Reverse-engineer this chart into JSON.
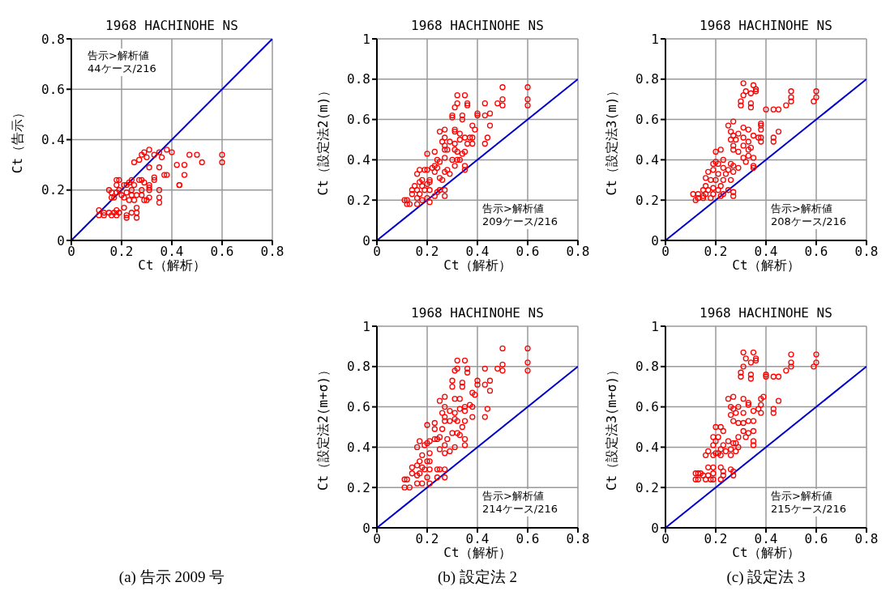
{
  "chart_data": [
    {
      "type": "scatter",
      "title": "1968 HACHINOHE NS",
      "xlabel": "Ct（解析）",
      "ylabel": "Ct（告示）",
      "xlim": [
        0,
        0.8
      ],
      "ylim": [
        0,
        0.8
      ],
      "xticks": [
        0,
        0.2,
        0.4,
        0.6,
        0.8
      ],
      "yticks": [
        0,
        0.2,
        0.4,
        0.6,
        0.8
      ],
      "grid": true,
      "annotations": [
        "告示>解析値",
        "44ケース/216",
        "(a) 告示 2009 号"
      ],
      "series": [
        {
          "type": "scatter",
          "marker": "circle",
          "color": "#ff0000",
          "x": [
            0.45,
            0.43,
            0.43,
            0.38,
            0.37,
            0.35,
            0.31,
            0.35,
            0.35,
            0.35,
            0.31,
            0.29,
            0.26,
            0.26,
            0.26,
            0.24,
            0.22,
            0.22,
            0.21,
            0.18,
            0.17,
            0.15,
            0.13,
            0.11,
            0.11,
            0.13,
            0.16,
            0.18,
            0.19,
            0.16,
            0.18,
            0.2,
            0.22,
            0.24,
            0.26,
            0.28,
            0.3,
            0.25,
            0.23,
            0.17,
            0.19,
            0.18,
            0.18,
            0.19,
            0.21,
            0.22,
            0.23,
            0.24,
            0.25,
            0.27,
            0.28,
            0.29,
            0.31,
            0.31,
            0.33,
            0.33,
            0.31,
            0.28,
            0.24,
            0.15,
            0.16,
            0.21,
            0.5,
            0.6,
            0.6,
            0.52,
            0.47,
            0.45,
            0.4,
            0.38,
            0.35,
            0.33,
            0.3,
            0.28,
            0.27,
            0.25,
            0.31,
            0.36,
            0.42,
            0.29
          ],
          "values": [
            0.26,
            0.22,
            0.22,
            0.26,
            0.26,
            0.29,
            0.29,
            0.2,
            0.17,
            0.15,
            0.17,
            0.16,
            0.13,
            0.11,
            0.09,
            0.11,
            0.1,
            0.09,
            0.13,
            0.12,
            0.11,
            0.11,
            0.11,
            0.12,
            0.1,
            0.1,
            0.1,
            0.1,
            0.11,
            0.19,
            0.19,
            0.18,
            0.19,
            0.18,
            0.18,
            0.18,
            0.16,
            0.16,
            0.16,
            0.17,
            0.2,
            0.22,
            0.24,
            0.24,
            0.22,
            0.22,
            0.23,
            0.24,
            0.22,
            0.24,
            0.24,
            0.23,
            0.22,
            0.21,
            0.24,
            0.25,
            0.2,
            0.2,
            0.2,
            0.2,
            0.17,
            0.17,
            0.34,
            0.34,
            0.31,
            0.31,
            0.34,
            0.3,
            0.35,
            0.36,
            0.35,
            0.34,
            0.33,
            0.34,
            0.32,
            0.31,
            0.36,
            0.33,
            0.3,
            0.35
          ]
        },
        {
          "type": "line",
          "marker": "none",
          "color": "#0000cc",
          "x": [
            0,
            0.8
          ],
          "values": [
            0,
            0.8
          ]
        }
      ]
    },
    {
      "type": "scatter",
      "title": "1968 HACHINOHE NS",
      "xlabel": "Ct（解析）",
      "ylabel": "Ct（設定法2(m)）",
      "xlim": [
        0,
        0.8
      ],
      "ylim": [
        0,
        1
      ],
      "xticks": [
        0,
        0.2,
        0.4,
        0.6,
        0.8
      ],
      "yticks": [
        0,
        0.2,
        0.4,
        0.6,
        0.8,
        1
      ],
      "grid": true,
      "annotations": [
        "告示>解析値",
        "209ケース/216"
      ],
      "series": [
        {
          "type": "scatter",
          "marker": "circle",
          "color": "#ff0000",
          "x": [
            0.5,
            0.6,
            0.6,
            0.6,
            0.5,
            0.5,
            0.48,
            0.43,
            0.32,
            0.35,
            0.32,
            0.31,
            0.36,
            0.36,
            0.3,
            0.3,
            0.34,
            0.34,
            0.4,
            0.4,
            0.43,
            0.45,
            0.45,
            0.38,
            0.39,
            0.27,
            0.25,
            0.31,
            0.31,
            0.33,
            0.35,
            0.37,
            0.38,
            0.44,
            0.43,
            0.38,
            0.36,
            0.33,
            0.27,
            0.26,
            0.27,
            0.29,
            0.31,
            0.31,
            0.28,
            0.27,
            0.23,
            0.2,
            0.32,
            0.34,
            0.35,
            0.24,
            0.27,
            0.3,
            0.32,
            0.33,
            0.35,
            0.35,
            0.31,
            0.25,
            0.23,
            0.22,
            0.2,
            0.17,
            0.19,
            0.16,
            0.24,
            0.28,
            0.27,
            0.29,
            0.23,
            0.25,
            0.26,
            0.17,
            0.18,
            0.21,
            0.21,
            0.2,
            0.18,
            0.15,
            0.14,
            0.16,
            0.19,
            0.21,
            0.24,
            0.25,
            0.27,
            0.27,
            0.23,
            0.2,
            0.17,
            0.14,
            0.16,
            0.11,
            0.12,
            0.12,
            0.13,
            0.16,
            0.18,
            0.21
          ],
          "values": [
            0.76,
            0.76,
            0.7,
            0.67,
            0.7,
            0.67,
            0.68,
            0.68,
            0.72,
            0.72,
            0.68,
            0.66,
            0.68,
            0.67,
            0.62,
            0.61,
            0.62,
            0.6,
            0.63,
            0.62,
            0.62,
            0.63,
            0.57,
            0.57,
            0.55,
            0.55,
            0.54,
            0.55,
            0.54,
            0.53,
            0.51,
            0.51,
            0.51,
            0.51,
            0.48,
            0.48,
            0.48,
            0.5,
            0.51,
            0.49,
            0.47,
            0.49,
            0.48,
            0.45,
            0.45,
            0.45,
            0.44,
            0.43,
            0.44,
            0.43,
            0.44,
            0.4,
            0.41,
            0.4,
            0.4,
            0.4,
            0.37,
            0.35,
            0.37,
            0.39,
            0.37,
            0.36,
            0.35,
            0.35,
            0.35,
            0.33,
            0.36,
            0.35,
            0.34,
            0.33,
            0.34,
            0.31,
            0.3,
            0.29,
            0.3,
            0.29,
            0.3,
            0.28,
            0.27,
            0.27,
            0.25,
            0.25,
            0.25,
            0.25,
            0.24,
            0.25,
            0.25,
            0.22,
            0.22,
            0.21,
            0.23,
            0.23,
            0.21,
            0.2,
            0.2,
            0.18,
            0.18,
            0.18,
            0.2,
            0.19
          ]
        },
        {
          "type": "line",
          "marker": "none",
          "color": "#0000cc",
          "x": [
            0,
            0.8
          ],
          "values": [
            0,
            0.8
          ]
        }
      ]
    },
    {
      "type": "scatter",
      "title": "1968 HACHINOHE NS",
      "xlabel": "Ct（解析）",
      "ylabel": "Ct（設定法3(m)）",
      "xlim": [
        0,
        0.8
      ],
      "ylim": [
        0,
        1
      ],
      "xticks": [
        0,
        0.2,
        0.4,
        0.6,
        0.8
      ],
      "yticks": [
        0,
        0.2,
        0.4,
        0.6,
        0.8,
        1
      ],
      "grid": true,
      "annotations": [
        "告示>解析値",
        "208ケース/216"
      ],
      "series": [
        {
          "type": "scatter",
          "marker": "circle",
          "color": "#ff0000",
          "x": [
            0.31,
            0.35,
            0.36,
            0.32,
            0.34,
            0.36,
            0.31,
            0.3,
            0.3,
            0.34,
            0.34,
            0.4,
            0.43,
            0.45,
            0.48,
            0.5,
            0.5,
            0.5,
            0.6,
            0.6,
            0.59,
            0.45,
            0.43,
            0.43,
            0.38,
            0.38,
            0.38,
            0.38,
            0.38,
            0.35,
            0.37,
            0.27,
            0.25,
            0.31,
            0.33,
            0.26,
            0.27,
            0.29,
            0.26,
            0.28,
            0.31,
            0.33,
            0.31,
            0.27,
            0.27,
            0.29,
            0.33,
            0.34,
            0.2,
            0.22,
            0.31,
            0.33,
            0.35,
            0.32,
            0.35,
            0.35,
            0.29,
            0.27,
            0.25,
            0.26,
            0.23,
            0.21,
            0.2,
            0.19,
            0.17,
            0.19,
            0.23,
            0.27,
            0.21,
            0.24,
            0.16,
            0.18,
            0.2,
            0.23,
            0.26,
            0.16,
            0.19,
            0.22,
            0.15,
            0.17,
            0.21,
            0.25,
            0.27,
            0.23,
            0.19,
            0.16,
            0.11,
            0.13,
            0.15,
            0.18,
            0.22,
            0.27,
            0.12,
            0.13,
            0.15
          ],
          "values": [
            0.78,
            0.77,
            0.75,
            0.74,
            0.73,
            0.74,
            0.72,
            0.69,
            0.67,
            0.68,
            0.66,
            0.65,
            0.65,
            0.65,
            0.67,
            0.74,
            0.71,
            0.69,
            0.74,
            0.71,
            0.69,
            0.54,
            0.51,
            0.49,
            0.58,
            0.57,
            0.55,
            0.51,
            0.49,
            0.52,
            0.51,
            0.59,
            0.57,
            0.56,
            0.55,
            0.54,
            0.52,
            0.53,
            0.5,
            0.5,
            0.51,
            0.49,
            0.47,
            0.47,
            0.45,
            0.44,
            0.45,
            0.46,
            0.44,
            0.45,
            0.41,
            0.42,
            0.41,
            0.39,
            0.37,
            0.36,
            0.36,
            0.34,
            0.35,
            0.38,
            0.4,
            0.38,
            0.39,
            0.38,
            0.34,
            0.35,
            0.36,
            0.37,
            0.33,
            0.33,
            0.31,
            0.3,
            0.3,
            0.3,
            0.3,
            0.27,
            0.26,
            0.27,
            0.25,
            0.25,
            0.25,
            0.25,
            0.24,
            0.23,
            0.23,
            0.23,
            0.23,
            0.23,
            0.22,
            0.21,
            0.22,
            0.22,
            0.2,
            0.21,
            0.21
          ]
        },
        {
          "type": "line",
          "marker": "none",
          "color": "#0000cc",
          "x": [
            0,
            0.8
          ],
          "values": [
            0,
            0.8
          ]
        }
      ]
    },
    {
      "type": "scatter",
      "title": "1968 HACHINOHE NS",
      "xlabel": "Ct（解析）",
      "ylabel": "Ct（設定法2(m+σ)）",
      "xlim": [
        0,
        0.8
      ],
      "ylim": [
        0,
        1
      ],
      "xticks": [
        0,
        0.2,
        0.4,
        0.6,
        0.8
      ],
      "yticks": [
        0,
        0.2,
        0.4,
        0.6,
        0.8,
        1
      ],
      "grid": true,
      "annotations": [
        "告示>解析値",
        "214ケース/216",
        "(b) 設定法 2"
      ],
      "series": [
        {
          "type": "scatter",
          "marker": "circle",
          "color": "#ff0000",
          "x": [
            0.5,
            0.6,
            0.6,
            0.6,
            0.5,
            0.5,
            0.48,
            0.43,
            0.32,
            0.35,
            0.32,
            0.31,
            0.36,
            0.36,
            0.3,
            0.3,
            0.34,
            0.34,
            0.4,
            0.4,
            0.43,
            0.45,
            0.45,
            0.38,
            0.39,
            0.27,
            0.25,
            0.31,
            0.33,
            0.35,
            0.37,
            0.38,
            0.44,
            0.43,
            0.38,
            0.35,
            0.33,
            0.27,
            0.26,
            0.27,
            0.29,
            0.31,
            0.31,
            0.29,
            0.27,
            0.23,
            0.2,
            0.32,
            0.34,
            0.35,
            0.23,
            0.26,
            0.3,
            0.32,
            0.33,
            0.35,
            0.35,
            0.31,
            0.25,
            0.23,
            0.21,
            0.2,
            0.17,
            0.16,
            0.19,
            0.24,
            0.28,
            0.27,
            0.29,
            0.25,
            0.27,
            0.18,
            0.21,
            0.17,
            0.2,
            0.21,
            0.16,
            0.18,
            0.14,
            0.19,
            0.21,
            0.24,
            0.25,
            0.27,
            0.27,
            0.24,
            0.2,
            0.17,
            0.14,
            0.16,
            0.11,
            0.12,
            0.16,
            0.18,
            0.21,
            0.11,
            0.13
          ],
          "values": [
            0.89,
            0.89,
            0.82,
            0.78,
            0.81,
            0.78,
            0.79,
            0.79,
            0.83,
            0.83,
            0.79,
            0.78,
            0.79,
            0.77,
            0.73,
            0.7,
            0.72,
            0.7,
            0.73,
            0.71,
            0.71,
            0.73,
            0.68,
            0.67,
            0.66,
            0.65,
            0.63,
            0.64,
            0.64,
            0.6,
            0.61,
            0.6,
            0.59,
            0.55,
            0.55,
            0.58,
            0.59,
            0.6,
            0.57,
            0.55,
            0.58,
            0.57,
            0.54,
            0.53,
            0.53,
            0.52,
            0.51,
            0.53,
            0.5,
            0.53,
            0.49,
            0.49,
            0.47,
            0.47,
            0.46,
            0.44,
            0.41,
            0.4,
            0.45,
            0.44,
            0.43,
            0.42,
            0.43,
            0.4,
            0.41,
            0.44,
            0.44,
            0.41,
            0.38,
            0.39,
            0.37,
            0.36,
            0.37,
            0.33,
            0.33,
            0.33,
            0.31,
            0.3,
            0.3,
            0.29,
            0.29,
            0.29,
            0.29,
            0.29,
            0.25,
            0.25,
            0.25,
            0.27,
            0.27,
            0.26,
            0.24,
            0.24,
            0.22,
            0.22,
            0.22,
            0.2,
            0.2
          ]
        },
        {
          "type": "line",
          "marker": "none",
          "color": "#0000cc",
          "x": [
            0,
            0.8
          ],
          "values": [
            0,
            0.8
          ]
        }
      ]
    },
    {
      "type": "scatter",
      "title": "1968 HACHINOHE NS",
      "xlabel": "Ct（解析）",
      "ylabel": "Ct（設定法3(m+σ)）",
      "xlim": [
        0,
        0.8
      ],
      "ylim": [
        0,
        1
      ],
      "xticks": [
        0,
        0.2,
        0.4,
        0.6,
        0.8
      ],
      "yticks": [
        0,
        0.2,
        0.4,
        0.6,
        0.8,
        1
      ],
      "grid": true,
      "annotations": [
        "告示>解析値",
        "215ケース/216",
        "(c) 設定法 3"
      ],
      "series": [
        {
          "type": "scatter",
          "marker": "circle",
          "color": "#ff0000",
          "x": [
            0.31,
            0.35,
            0.36,
            0.32,
            0.34,
            0.36,
            0.31,
            0.3,
            0.3,
            0.34,
            0.34,
            0.4,
            0.4,
            0.43,
            0.45,
            0.48,
            0.5,
            0.5,
            0.5,
            0.6,
            0.6,
            0.59,
            0.45,
            0.43,
            0.43,
            0.39,
            0.38,
            0.38,
            0.38,
            0.35,
            0.37,
            0.27,
            0.25,
            0.31,
            0.33,
            0.26,
            0.27,
            0.29,
            0.26,
            0.28,
            0.31,
            0.33,
            0.31,
            0.27,
            0.29,
            0.33,
            0.35,
            0.2,
            0.22,
            0.31,
            0.33,
            0.35,
            0.32,
            0.35,
            0.35,
            0.29,
            0.28,
            0.25,
            0.23,
            0.21,
            0.19,
            0.2,
            0.19,
            0.23,
            0.27,
            0.22,
            0.24,
            0.26,
            0.29,
            0.2,
            0.17,
            0.16,
            0.19,
            0.21,
            0.22,
            0.28,
            0.26,
            0.14,
            0.17,
            0.19,
            0.22,
            0.12,
            0.13,
            0.15,
            0.17,
            0.19,
            0.23,
            0.26,
            0.27,
            0.23,
            0.27,
            0.12,
            0.13,
            0.16,
            0.18,
            0.19,
            0.22
          ],
          "values": [
            0.87,
            0.87,
            0.84,
            0.84,
            0.82,
            0.83,
            0.8,
            0.77,
            0.75,
            0.76,
            0.74,
            0.76,
            0.75,
            0.75,
            0.75,
            0.78,
            0.86,
            0.82,
            0.8,
            0.86,
            0.82,
            0.8,
            0.63,
            0.59,
            0.57,
            0.65,
            0.64,
            0.61,
            0.57,
            0.58,
            0.59,
            0.65,
            0.64,
            0.64,
            0.62,
            0.6,
            0.59,
            0.6,
            0.56,
            0.57,
            0.57,
            0.61,
            0.52,
            0.53,
            0.52,
            0.53,
            0.53,
            0.5,
            0.5,
            0.48,
            0.47,
            0.48,
            0.45,
            0.43,
            0.41,
            0.45,
            0.42,
            0.43,
            0.48,
            0.45,
            0.45,
            0.43,
            0.41,
            0.41,
            0.42,
            0.39,
            0.38,
            0.39,
            0.4,
            0.37,
            0.38,
            0.36,
            0.36,
            0.37,
            0.36,
            0.38,
            0.36,
            0.27,
            0.3,
            0.3,
            0.3,
            0.27,
            0.27,
            0.26,
            0.26,
            0.27,
            0.28,
            0.29,
            0.28,
            0.26,
            0.26,
            0.24,
            0.24,
            0.24,
            0.24,
            0.24,
            0.24
          ]
        },
        {
          "type": "line",
          "marker": "none",
          "color": "#0000cc",
          "x": [
            0,
            0.8
          ],
          "values": [
            0,
            0.8
          ]
        }
      ]
    }
  ]
}
